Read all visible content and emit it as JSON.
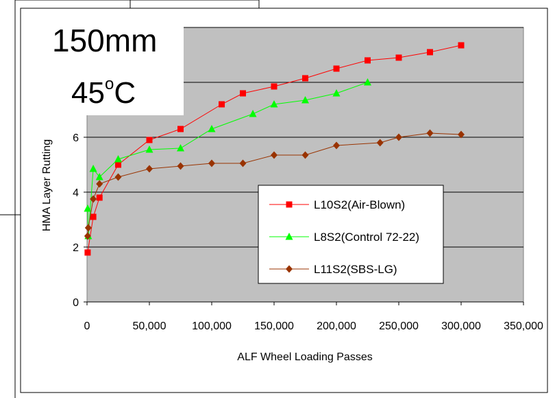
{
  "overlay": {
    "thickness": "150mm",
    "temp_value": "45",
    "temp_degree": "o",
    "temp_unit": "C"
  },
  "chart_data": {
    "type": "line",
    "title": "",
    "xlabel": "ALF Wheel Loading Passes",
    "ylabel": "HMA Layer Rutting",
    "xlim": [
      0,
      350000
    ],
    "ylim": [
      0,
      10
    ],
    "x_ticks": [
      0,
      50000,
      100000,
      150000,
      200000,
      250000,
      300000,
      350000
    ],
    "x_tick_labels": [
      "0",
      "50,000",
      "100,000",
      "150,000",
      "200,000",
      "250,000",
      "300,000",
      "350,000"
    ],
    "y_ticks": [
      0,
      2,
      4,
      6,
      8,
      10
    ],
    "y_tick_labels": [
      "0",
      "2",
      "4",
      "6",
      "",
      ""
    ],
    "grid": true,
    "legend_position": "bottom-right",
    "series": [
      {
        "name": "L10S2(Air-Blown)",
        "color": "#ff0000",
        "marker": "square",
        "x": [
          500,
          5000,
          10000,
          25000,
          50000,
          75000,
          108000,
          125000,
          150000,
          175000,
          200000,
          225000,
          250000,
          275000,
          300000
        ],
        "y": [
          1.8,
          3.1,
          3.8,
          5.0,
          5.9,
          6.3,
          7.2,
          7.6,
          7.85,
          8.15,
          8.5,
          8.8,
          8.9,
          9.1,
          9.35
        ]
      },
      {
        "name": "L8S2(Control 72-22)",
        "color": "#00ff00",
        "marker": "triangle",
        "x": [
          500,
          1000,
          5000,
          10000,
          25000,
          50000,
          75000,
          100000,
          133000,
          150000,
          175000,
          200000,
          225000
        ],
        "y": [
          3.4,
          2.4,
          4.85,
          4.55,
          5.2,
          5.55,
          5.6,
          6.3,
          6.85,
          7.2,
          7.35,
          7.6,
          8.0
        ]
      },
      {
        "name": "L11S2(SBS-LG)",
        "color": "#993300",
        "marker": "diamond",
        "x": [
          500,
          1000,
          5000,
          10000,
          25000,
          50000,
          75000,
          100000,
          125000,
          150000,
          175000,
          200000,
          235000,
          250000,
          275000,
          300000
        ],
        "y": [
          2.4,
          2.7,
          3.75,
          4.3,
          4.55,
          4.85,
          4.95,
          5.05,
          5.05,
          5.35,
          5.35,
          5.7,
          5.8,
          6.0,
          6.15,
          6.1
        ]
      }
    ]
  }
}
